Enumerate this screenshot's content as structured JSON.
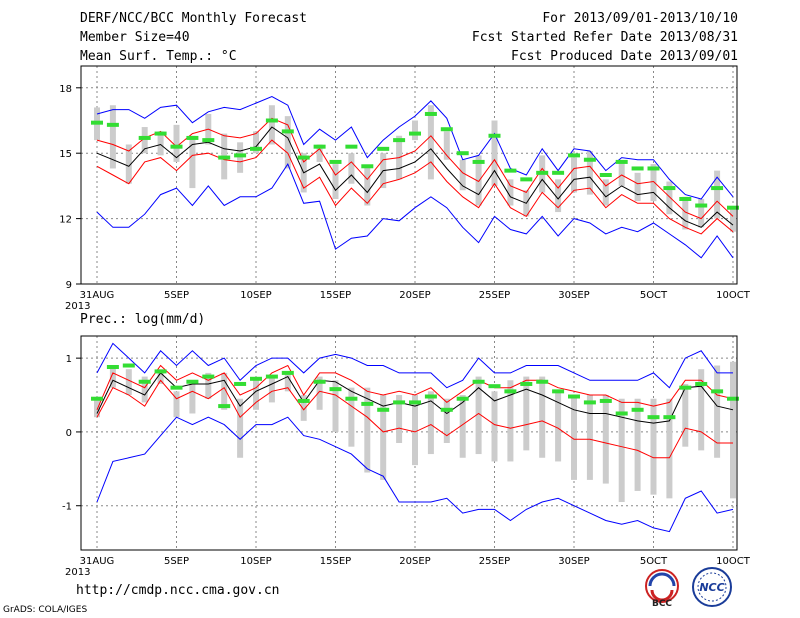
{
  "header": {
    "left_line1": "DERF/NCC/BCC Monthly Forecast",
    "left_line2": "Member Size=40",
    "left_line3": "Mean Surf. Temp.: °C",
    "right_line1": "For 2013/09/01-2013/10/10",
    "right_line2": "Fcst Started Refer Date 2013/08/31",
    "right_line3": "Fcst Produced Date 2013/09/01"
  },
  "footer": {
    "url": "http://cmdp.ncc.cma.gov.cn",
    "credit": "GrADS: COLA/IGES",
    "logo_bcc": "BCC",
    "logo_ncc": "NCC"
  },
  "colors": {
    "ensemble_min_max": "#0000ff",
    "ensemble_spread": "#ff0000",
    "ensemble_mean": "#000000",
    "climatology": "#33dd33",
    "box": "#cccccc",
    "grid": "#888888"
  },
  "chart_data": [
    {
      "type": "box",
      "title": "Mean Surf. Temp.: °C",
      "ylabel": "°C",
      "ylim": [
        9,
        19
      ],
      "yticks": [
        9,
        12,
        15,
        18
      ],
      "x_days": [
        0,
        40
      ],
      "xticks": [
        {
          "day": 0,
          "label": "31AUG"
        },
        {
          "day": 5,
          "label": "5SEP"
        },
        {
          "day": 10,
          "label": "10SEP"
        },
        {
          "day": 15,
          "label": "15SEP"
        },
        {
          "day": 20,
          "label": "20SEP"
        },
        {
          "day": 25,
          "label": "25SEP"
        },
        {
          "day": 30,
          "label": "30SEP"
        },
        {
          "day": 35,
          "label": "5OCT"
        },
        {
          "day": 40,
          "label": "10OCT"
        }
      ],
      "year_label": "2013",
      "series": [
        {
          "name": "ensemble max",
          "values": [
            16.8,
            17.0,
            17.0,
            16.6,
            17.1,
            17.2,
            16.4,
            16.9,
            17.1,
            17.0,
            17.3,
            17.6,
            17.2,
            15.4,
            16.1,
            15.6,
            16.2,
            14.8,
            15.6,
            16.2,
            16.7,
            17.4,
            16.6,
            14.7,
            14.9,
            15.9,
            14.3,
            14.0,
            15.2,
            14.2,
            15.2,
            15.1,
            14.2,
            14.8,
            14.7,
            14.7,
            13.8,
            13.1,
            12.9,
            13.9,
            13.0
          ]
        },
        {
          "name": "upper spread",
          "values": [
            15.6,
            15.4,
            15.1,
            15.7,
            16.0,
            15.3,
            15.9,
            16.1,
            15.8,
            15.7,
            15.9,
            16.6,
            16.3,
            14.6,
            15.2,
            14.0,
            14.6,
            13.8,
            14.7,
            14.8,
            15.1,
            15.8,
            14.9,
            14.1,
            13.7,
            14.7,
            13.5,
            13.2,
            14.3,
            13.4,
            14.3,
            14.4,
            13.5,
            14.0,
            13.6,
            13.7,
            13.0,
            12.3,
            12.0,
            12.8,
            12.1
          ]
        },
        {
          "name": "ensemble mean",
          "values": [
            15.0,
            14.7,
            14.4,
            15.2,
            15.4,
            14.8,
            15.4,
            15.5,
            15.2,
            15.1,
            15.3,
            16.2,
            15.7,
            14.1,
            14.5,
            13.3,
            14.0,
            13.2,
            14.2,
            14.3,
            14.6,
            15.2,
            14.3,
            13.5,
            13.1,
            14.2,
            13.0,
            12.7,
            13.8,
            12.9,
            13.8,
            13.9,
            13.0,
            13.5,
            13.1,
            13.2,
            12.5,
            11.9,
            11.6,
            12.3,
            11.7
          ]
        },
        {
          "name": "lower spread",
          "values": [
            14.4,
            14.0,
            13.6,
            14.6,
            14.8,
            14.2,
            14.9,
            15.0,
            14.7,
            14.6,
            14.8,
            15.6,
            15.0,
            13.4,
            13.9,
            12.6,
            13.4,
            12.7,
            13.6,
            13.8,
            14.1,
            14.6,
            13.7,
            13.0,
            12.5,
            13.6,
            12.5,
            12.1,
            13.2,
            12.5,
            13.3,
            13.4,
            12.5,
            13.1,
            12.7,
            12.7,
            12.0,
            11.6,
            11.3,
            12.0,
            11.4
          ]
        },
        {
          "name": "ensemble min",
          "values": [
            12.3,
            11.6,
            11.6,
            12.2,
            13.1,
            13.4,
            12.6,
            13.5,
            12.6,
            13.0,
            13.0,
            13.4,
            14.5,
            12.7,
            12.8,
            10.6,
            11.1,
            11.2,
            12.0,
            11.9,
            12.5,
            13.0,
            12.5,
            11.6,
            10.9,
            12.1,
            11.5,
            11.3,
            12.1,
            11.2,
            12.0,
            11.8,
            11.3,
            11.6,
            11.4,
            11.8,
            11.3,
            10.8,
            10.2,
            11.2,
            10.2
          ]
        },
        {
          "name": "box upper",
          "values": [
            17.1,
            17.2,
            15.4,
            16.2,
            16.0,
            16.3,
            15.8,
            16.8,
            15.9,
            15.5,
            16.0,
            17.2,
            16.7,
            15.0,
            15.4,
            14.5,
            15.0,
            14.4,
            15.0,
            15.8,
            16.5,
            17.2,
            16.0,
            14.7,
            14.9,
            16.5,
            13.8,
            13.3,
            14.9,
            13.8,
            14.8,
            15.1,
            13.8,
            14.6,
            14.1,
            14.5,
            13.7,
            13.0,
            12.9,
            14.2,
            12.5
          ]
        },
        {
          "name": "box lower",
          "values": [
            15.6,
            14.3,
            13.6,
            15.0,
            14.9,
            14.6,
            13.4,
            15.4,
            13.8,
            14.1,
            15.0,
            15.4,
            14.3,
            13.2,
            14.6,
            12.9,
            13.6,
            12.6,
            13.4,
            13.8,
            15.6,
            13.8,
            14.7,
            13.3,
            12.6,
            13.5,
            12.6,
            12.1,
            13.2,
            12.3,
            13.2,
            13.1,
            12.6,
            13.5,
            12.8,
            12.8,
            12.2,
            11.5,
            11.6,
            12.0,
            11.4
          ]
        },
        {
          "name": "climatology",
          "values": [
            16.4,
            16.3,
            null,
            15.7,
            15.9,
            15.3,
            15.7,
            15.6,
            14.8,
            14.9,
            15.2,
            16.5,
            16.0,
            14.8,
            15.3,
            14.6,
            15.3,
            14.4,
            15.2,
            15.6,
            15.9,
            16.8,
            16.1,
            15.0,
            14.6,
            15.8,
            14.2,
            13.8,
            14.1,
            14.1,
            14.9,
            14.7,
            14.0,
            14.6,
            14.3,
            14.3,
            13.4,
            12.9,
            12.6,
            13.4,
            12.5
          ]
        }
      ]
    },
    {
      "type": "box",
      "title": "Prec.: log(mm/d)",
      "ylabel": "log(mm/d)",
      "ylim": [
        -1.6,
        1.3
      ],
      "yticks": [
        -1,
        0,
        1
      ],
      "x_days": [
        0,
        40
      ],
      "xticks": [
        {
          "day": 0,
          "label": "31AUG"
        },
        {
          "day": 5,
          "label": "5SEP"
        },
        {
          "day": 10,
          "label": "10SEP"
        },
        {
          "day": 15,
          "label": "15SEP"
        },
        {
          "day": 20,
          "label": "20SEP"
        },
        {
          "day": 25,
          "label": "25SEP"
        },
        {
          "day": 30,
          "label": "30SEP"
        },
        {
          "day": 35,
          "label": "5OCT"
        },
        {
          "day": 40,
          "label": "10OCT"
        }
      ],
      "year_label": "2013",
      "series": [
        {
          "name": "ensemble max",
          "values": [
            0.8,
            1.2,
            1.0,
            0.8,
            1.1,
            0.9,
            1.1,
            0.9,
            1.0,
            0.7,
            0.9,
            1.0,
            1.0,
            0.8,
            1.0,
            1.05,
            1.0,
            0.9,
            0.9,
            0.8,
            0.8,
            0.8,
            0.6,
            0.7,
            1.0,
            0.8,
            0.8,
            0.9,
            0.9,
            0.9,
            0.8,
            0.7,
            0.7,
            0.7,
            0.7,
            0.8,
            0.6,
            1.0,
            1.1,
            0.8,
            0.8
          ]
        },
        {
          "name": "upper spread",
          "values": [
            0.3,
            0.8,
            0.7,
            0.6,
            0.9,
            0.7,
            0.8,
            0.7,
            0.8,
            0.5,
            0.6,
            0.8,
            0.9,
            0.5,
            0.8,
            0.8,
            0.7,
            0.55,
            0.5,
            0.55,
            0.5,
            0.6,
            0.4,
            0.55,
            0.7,
            0.6,
            0.6,
            0.7,
            0.7,
            0.6,
            0.55,
            0.5,
            0.5,
            0.4,
            0.4,
            0.35,
            0.4,
            0.7,
            0.7,
            0.5,
            0.45
          ]
        },
        {
          "name": "ensemble mean",
          "values": [
            0.25,
            0.7,
            0.6,
            0.5,
            0.8,
            0.6,
            0.65,
            0.65,
            0.7,
            0.35,
            0.55,
            0.65,
            0.75,
            0.4,
            0.7,
            0.68,
            0.55,
            0.45,
            0.35,
            0.4,
            0.35,
            0.42,
            0.25,
            0.4,
            0.6,
            0.42,
            0.5,
            0.58,
            0.5,
            0.4,
            0.3,
            0.25,
            0.25,
            0.2,
            0.15,
            0.12,
            0.15,
            0.6,
            0.62,
            0.35,
            0.3
          ]
        },
        {
          "name": "lower spread",
          "values": [
            0.2,
            0.6,
            0.5,
            0.35,
            0.7,
            0.45,
            0.55,
            0.45,
            0.6,
            0.2,
            0.4,
            0.55,
            0.6,
            0.3,
            0.55,
            0.5,
            0.35,
            0.2,
            0.0,
            0.05,
            0.0,
            0.1,
            -0.05,
            0.1,
            0.25,
            0.1,
            0.05,
            0.1,
            0.15,
            0.05,
            -0.1,
            -0.1,
            -0.15,
            -0.2,
            -0.25,
            -0.35,
            -0.35,
            0.05,
            0.0,
            -0.15,
            -0.15
          ]
        },
        {
          "name": "ensemble min",
          "values": [
            -0.95,
            -0.4,
            -0.35,
            -0.3,
            -0.05,
            0.2,
            0.1,
            0.2,
            0.1,
            -0.1,
            0.1,
            0.1,
            0.2,
            -0.05,
            -0.1,
            -0.2,
            -0.3,
            -0.5,
            -0.6,
            -0.95,
            -0.95,
            -0.95,
            -0.9,
            -1.1,
            -1.05,
            -1.05,
            -1.2,
            -1.05,
            -0.95,
            -0.9,
            -1.0,
            -1.1,
            -1.2,
            -1.25,
            -1.2,
            -1.3,
            -1.35,
            -0.9,
            -0.8,
            -1.1,
            -1.05
          ]
        },
        {
          "name": "box upper",
          "values": [
            0.45,
            0.9,
            0.85,
            0.75,
            0.85,
            0.55,
            0.7,
            0.8,
            0.8,
            0.45,
            0.7,
            0.75,
            0.8,
            0.5,
            0.75,
            0.7,
            0.6,
            0.6,
            0.5,
            0.5,
            0.5,
            0.55,
            0.45,
            0.5,
            0.75,
            0.55,
            0.7,
            0.75,
            0.75,
            0.55,
            0.5,
            0.5,
            0.5,
            0.45,
            0.45,
            0.45,
            0.45,
            0.65,
            0.85,
            0.9,
            0.95
          ]
        },
        {
          "name": "box lower",
          "values": [
            0.2,
            0.6,
            0.5,
            0.4,
            0.65,
            0.2,
            0.25,
            0.45,
            0.3,
            -0.35,
            0.3,
            0.4,
            0.55,
            0.15,
            0.3,
            0.0,
            -0.2,
            -0.55,
            -0.65,
            -0.15,
            -0.45,
            -0.3,
            -0.15,
            -0.35,
            -0.3,
            -0.4,
            -0.4,
            -0.25,
            -0.35,
            -0.4,
            -0.65,
            -0.65,
            -0.7,
            -0.95,
            -0.8,
            -0.85,
            -0.9,
            -0.2,
            -0.25,
            -0.35,
            -0.9
          ]
        },
        {
          "name": "climatology",
          "values": [
            0.45,
            0.88,
            0.9,
            0.68,
            0.82,
            0.6,
            0.68,
            0.75,
            0.35,
            0.65,
            0.72,
            0.75,
            0.8,
            0.42,
            0.68,
            0.58,
            0.45,
            0.38,
            0.3,
            0.4,
            0.4,
            0.48,
            0.3,
            0.45,
            0.68,
            0.62,
            0.55,
            0.65,
            0.68,
            0.55,
            0.48,
            0.4,
            0.42,
            0.25,
            0.3,
            0.2,
            0.2,
            0.6,
            0.65,
            0.55,
            0.45
          ]
        }
      ]
    }
  ]
}
